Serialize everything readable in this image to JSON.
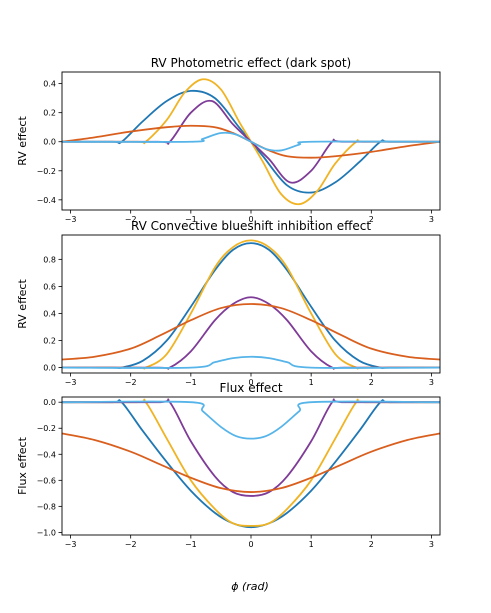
{
  "figure": {
    "xlabel": "ϕ (rad)"
  },
  "chart_data": [
    {
      "type": "line",
      "title": "RV Photometric effect (dark spot)",
      "xlabel": "",
      "ylabel": "RV effect",
      "xlim": [
        -3.14159,
        3.14159
      ],
      "ylim": [
        -0.47,
        0.48
      ],
      "xticks": [
        -3,
        -2,
        -1,
        0,
        1,
        2,
        3
      ],
      "yticks": [
        -0.4,
        -0.2,
        0.0,
        0.2,
        0.4
      ],
      "yticklabels": [
        "−0.4",
        "−0.2",
        "0.0",
        "0.2",
        "0.4"
      ],
      "grid": false,
      "series": [
        {
          "color": "#1f77b4",
          "x": [
            -3.14,
            -2.3,
            -2.15,
            -1.8,
            -1.4,
            -1.0,
            -0.6,
            -0.2,
            0.0,
            0.2,
            0.6,
            1.0,
            1.4,
            1.8,
            2.15,
            2.3,
            3.14
          ],
          "y": [
            0.0,
            0.0,
            0.0,
            0.14,
            0.28,
            0.35,
            0.3,
            0.1,
            0.0,
            -0.1,
            -0.3,
            -0.35,
            -0.28,
            -0.14,
            0.0,
            0.0,
            0.0
          ]
        },
        {
          "color": "#f0b323",
          "x": [
            -3.14,
            -1.9,
            -1.75,
            -1.4,
            -1.1,
            -0.8,
            -0.5,
            -0.2,
            0.0,
            0.2,
            0.5,
            0.8,
            1.1,
            1.4,
            1.75,
            1.9,
            3.14
          ],
          "y": [
            0.0,
            0.0,
            0.0,
            0.15,
            0.34,
            0.43,
            0.36,
            0.14,
            0.0,
            -0.14,
            -0.36,
            -0.43,
            -0.34,
            -0.15,
            0.0,
            0.0,
            0.0
          ]
        },
        {
          "color": "#7e3b97",
          "x": [
            -3.14,
            -1.55,
            -1.35,
            -1.0,
            -0.65,
            -0.3,
            0.0,
            0.3,
            0.65,
            1.0,
            1.35,
            1.55,
            3.14
          ],
          "y": [
            0.0,
            0.0,
            0.0,
            0.2,
            0.28,
            0.12,
            0.0,
            -0.12,
            -0.28,
            -0.2,
            0.0,
            0.0,
            0.0
          ]
        },
        {
          "color": "#d95f1e",
          "x": [
            -3.14,
            -2.6,
            -2.0,
            -1.4,
            -1.0,
            -0.6,
            -0.3,
            0.0,
            0.3,
            0.6,
            1.0,
            1.4,
            2.0,
            2.6,
            3.14
          ],
          "y": [
            0.0,
            0.03,
            0.07,
            0.1,
            0.11,
            0.1,
            0.06,
            0.0,
            -0.06,
            -0.1,
            -0.11,
            -0.1,
            -0.07,
            -0.03,
            0.0
          ]
        },
        {
          "color": "#56b4e9",
          "x": [
            -3.14,
            -1.0,
            -0.8,
            -0.5,
            -0.25,
            0.0,
            0.25,
            0.5,
            0.8,
            1.0,
            3.14
          ],
          "y": [
            0.0,
            0.0,
            0.02,
            0.06,
            0.05,
            0.0,
            -0.05,
            -0.06,
            -0.02,
            0.0,
            0.0
          ]
        }
      ]
    },
    {
      "type": "line",
      "title": "RV Convective blueshift inhibition effect",
      "xlabel": "",
      "ylabel": "RV effect",
      "xlim": [
        -3.14159,
        3.14159
      ],
      "ylim": [
        -0.04,
        0.98
      ],
      "xticks": [
        -3,
        -2,
        -1,
        0,
        1,
        2,
        3
      ],
      "yticks": [
        0.0,
        0.2,
        0.4,
        0.6,
        0.8
      ],
      "yticklabels": [
        "0.0",
        "0.2",
        "0.4",
        "0.6",
        "0.8"
      ],
      "grid": false,
      "series": [
        {
          "color": "#1f77b4",
          "x": [
            -3.14,
            -2.3,
            -2.15,
            -1.8,
            -1.4,
            -1.0,
            -0.6,
            -0.3,
            0.0,
            0.3,
            0.6,
            1.0,
            1.4,
            1.8,
            2.15,
            2.3,
            3.14
          ],
          "y": [
            0.0,
            0.0,
            0.0,
            0.05,
            0.2,
            0.45,
            0.72,
            0.87,
            0.92,
            0.87,
            0.72,
            0.45,
            0.2,
            0.05,
            0.0,
            0.0,
            0.0
          ]
        },
        {
          "color": "#f0b323",
          "x": [
            -3.14,
            -1.9,
            -1.75,
            -1.4,
            -1.0,
            -0.6,
            -0.3,
            0.0,
            0.3,
            0.6,
            1.0,
            1.4,
            1.75,
            1.9,
            3.14
          ],
          "y": [
            0.0,
            0.0,
            0.0,
            0.1,
            0.4,
            0.74,
            0.89,
            0.94,
            0.89,
            0.74,
            0.4,
            0.1,
            0.0,
            0.0,
            0.0
          ]
        },
        {
          "color": "#7e3b97",
          "x": [
            -3.14,
            -1.55,
            -1.35,
            -1.0,
            -0.6,
            -0.3,
            0.0,
            0.3,
            0.6,
            1.0,
            1.35,
            1.55,
            3.14
          ],
          "y": [
            0.0,
            0.0,
            0.0,
            0.12,
            0.35,
            0.47,
            0.52,
            0.47,
            0.35,
            0.12,
            0.0,
            0.0,
            0.0
          ]
        },
        {
          "color": "#d95f1e",
          "x": [
            -3.14,
            -2.6,
            -2.0,
            -1.5,
            -1.0,
            -0.5,
            0.0,
            0.5,
            1.0,
            1.5,
            2.0,
            2.6,
            3.14
          ],
          "y": [
            0.06,
            0.08,
            0.14,
            0.24,
            0.35,
            0.44,
            0.47,
            0.44,
            0.35,
            0.24,
            0.14,
            0.08,
            0.06
          ]
        },
        {
          "color": "#56b4e9",
          "x": [
            -3.14,
            -1.0,
            -0.6,
            -0.3,
            0.0,
            0.3,
            0.6,
            1.0,
            3.14
          ],
          "y": [
            0.0,
            0.0,
            0.04,
            0.07,
            0.08,
            0.07,
            0.04,
            0.0,
            0.0
          ]
        }
      ]
    },
    {
      "type": "line",
      "title": "Flux effect",
      "xlabel": "ϕ (rad)",
      "ylabel": "Flux effect",
      "xlim": [
        -3.14159,
        3.14159
      ],
      "ylim": [
        -1.02,
        0.04
      ],
      "xticks": [
        -3,
        -2,
        -1,
        0,
        1,
        2,
        3
      ],
      "yticks": [
        0.0,
        -0.2,
        -0.4,
        -0.6,
        -0.8,
        -1.0
      ],
      "yticklabels": [
        "0.0",
        "−0.2",
        "−0.4",
        "−0.6",
        "−0.8",
        "−1.0"
      ],
      "grid": false,
      "series": [
        {
          "color": "#1f77b4",
          "x": [
            -3.14,
            -2.3,
            -2.15,
            -1.8,
            -1.4,
            -1.0,
            -0.6,
            -0.3,
            0.0,
            0.3,
            0.6,
            1.0,
            1.4,
            1.8,
            2.15,
            2.3,
            3.14
          ],
          "y": [
            0.0,
            0.0,
            0.0,
            -0.22,
            -0.46,
            -0.68,
            -0.85,
            -0.93,
            -0.96,
            -0.93,
            -0.85,
            -0.68,
            -0.46,
            -0.22,
            0.0,
            0.0,
            0.0
          ]
        },
        {
          "color": "#f0b323",
          "x": [
            -3.14,
            -1.9,
            -1.75,
            -1.4,
            -1.0,
            -0.6,
            -0.3,
            0.0,
            0.3,
            0.6,
            1.0,
            1.4,
            1.75,
            1.9,
            3.14
          ],
          "y": [
            0.0,
            0.0,
            0.0,
            -0.28,
            -0.6,
            -0.82,
            -0.93,
            -0.95,
            -0.93,
            -0.82,
            -0.6,
            -0.28,
            0.0,
            0.0,
            0.0
          ]
        },
        {
          "color": "#7e3b97",
          "x": [
            -3.14,
            -1.55,
            -1.35,
            -1.0,
            -0.6,
            -0.3,
            0.0,
            0.3,
            0.6,
            1.0,
            1.35,
            1.55,
            3.14
          ],
          "y": [
            0.0,
            0.0,
            0.0,
            -0.3,
            -0.57,
            -0.69,
            -0.72,
            -0.69,
            -0.57,
            -0.3,
            0.0,
            0.0,
            0.0
          ]
        },
        {
          "color": "#d95f1e",
          "x": [
            -3.14,
            -2.6,
            -2.0,
            -1.5,
            -1.0,
            -0.5,
            0.0,
            0.5,
            1.0,
            1.5,
            2.0,
            2.6,
            3.14
          ],
          "y": [
            -0.24,
            -0.29,
            -0.38,
            -0.48,
            -0.58,
            -0.66,
            -0.69,
            -0.66,
            -0.58,
            -0.48,
            -0.38,
            -0.29,
            -0.24
          ]
        },
        {
          "color": "#56b4e9",
          "x": [
            -3.14,
            -1.0,
            -0.8,
            -0.5,
            -0.25,
            0.0,
            0.25,
            0.5,
            0.8,
            1.0,
            3.14
          ],
          "y": [
            0.0,
            0.0,
            -0.07,
            -0.19,
            -0.26,
            -0.28,
            -0.26,
            -0.19,
            -0.07,
            0.0,
            0.0
          ]
        }
      ]
    }
  ]
}
